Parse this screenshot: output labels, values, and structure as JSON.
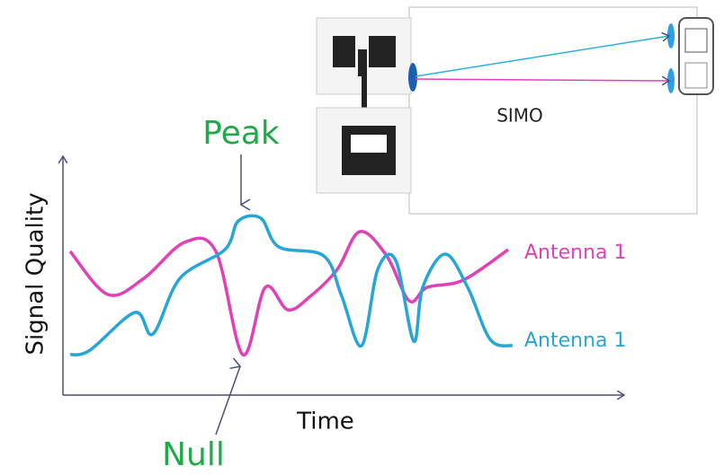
{
  "labels": {
    "peak": "Peak",
    "null": "Null",
    "y_axis": "Signal Quality",
    "x_axis": "Time",
    "system": "SIMO"
  },
  "legend": [
    "Antenna 1",
    "Antenna 1"
  ]
}
